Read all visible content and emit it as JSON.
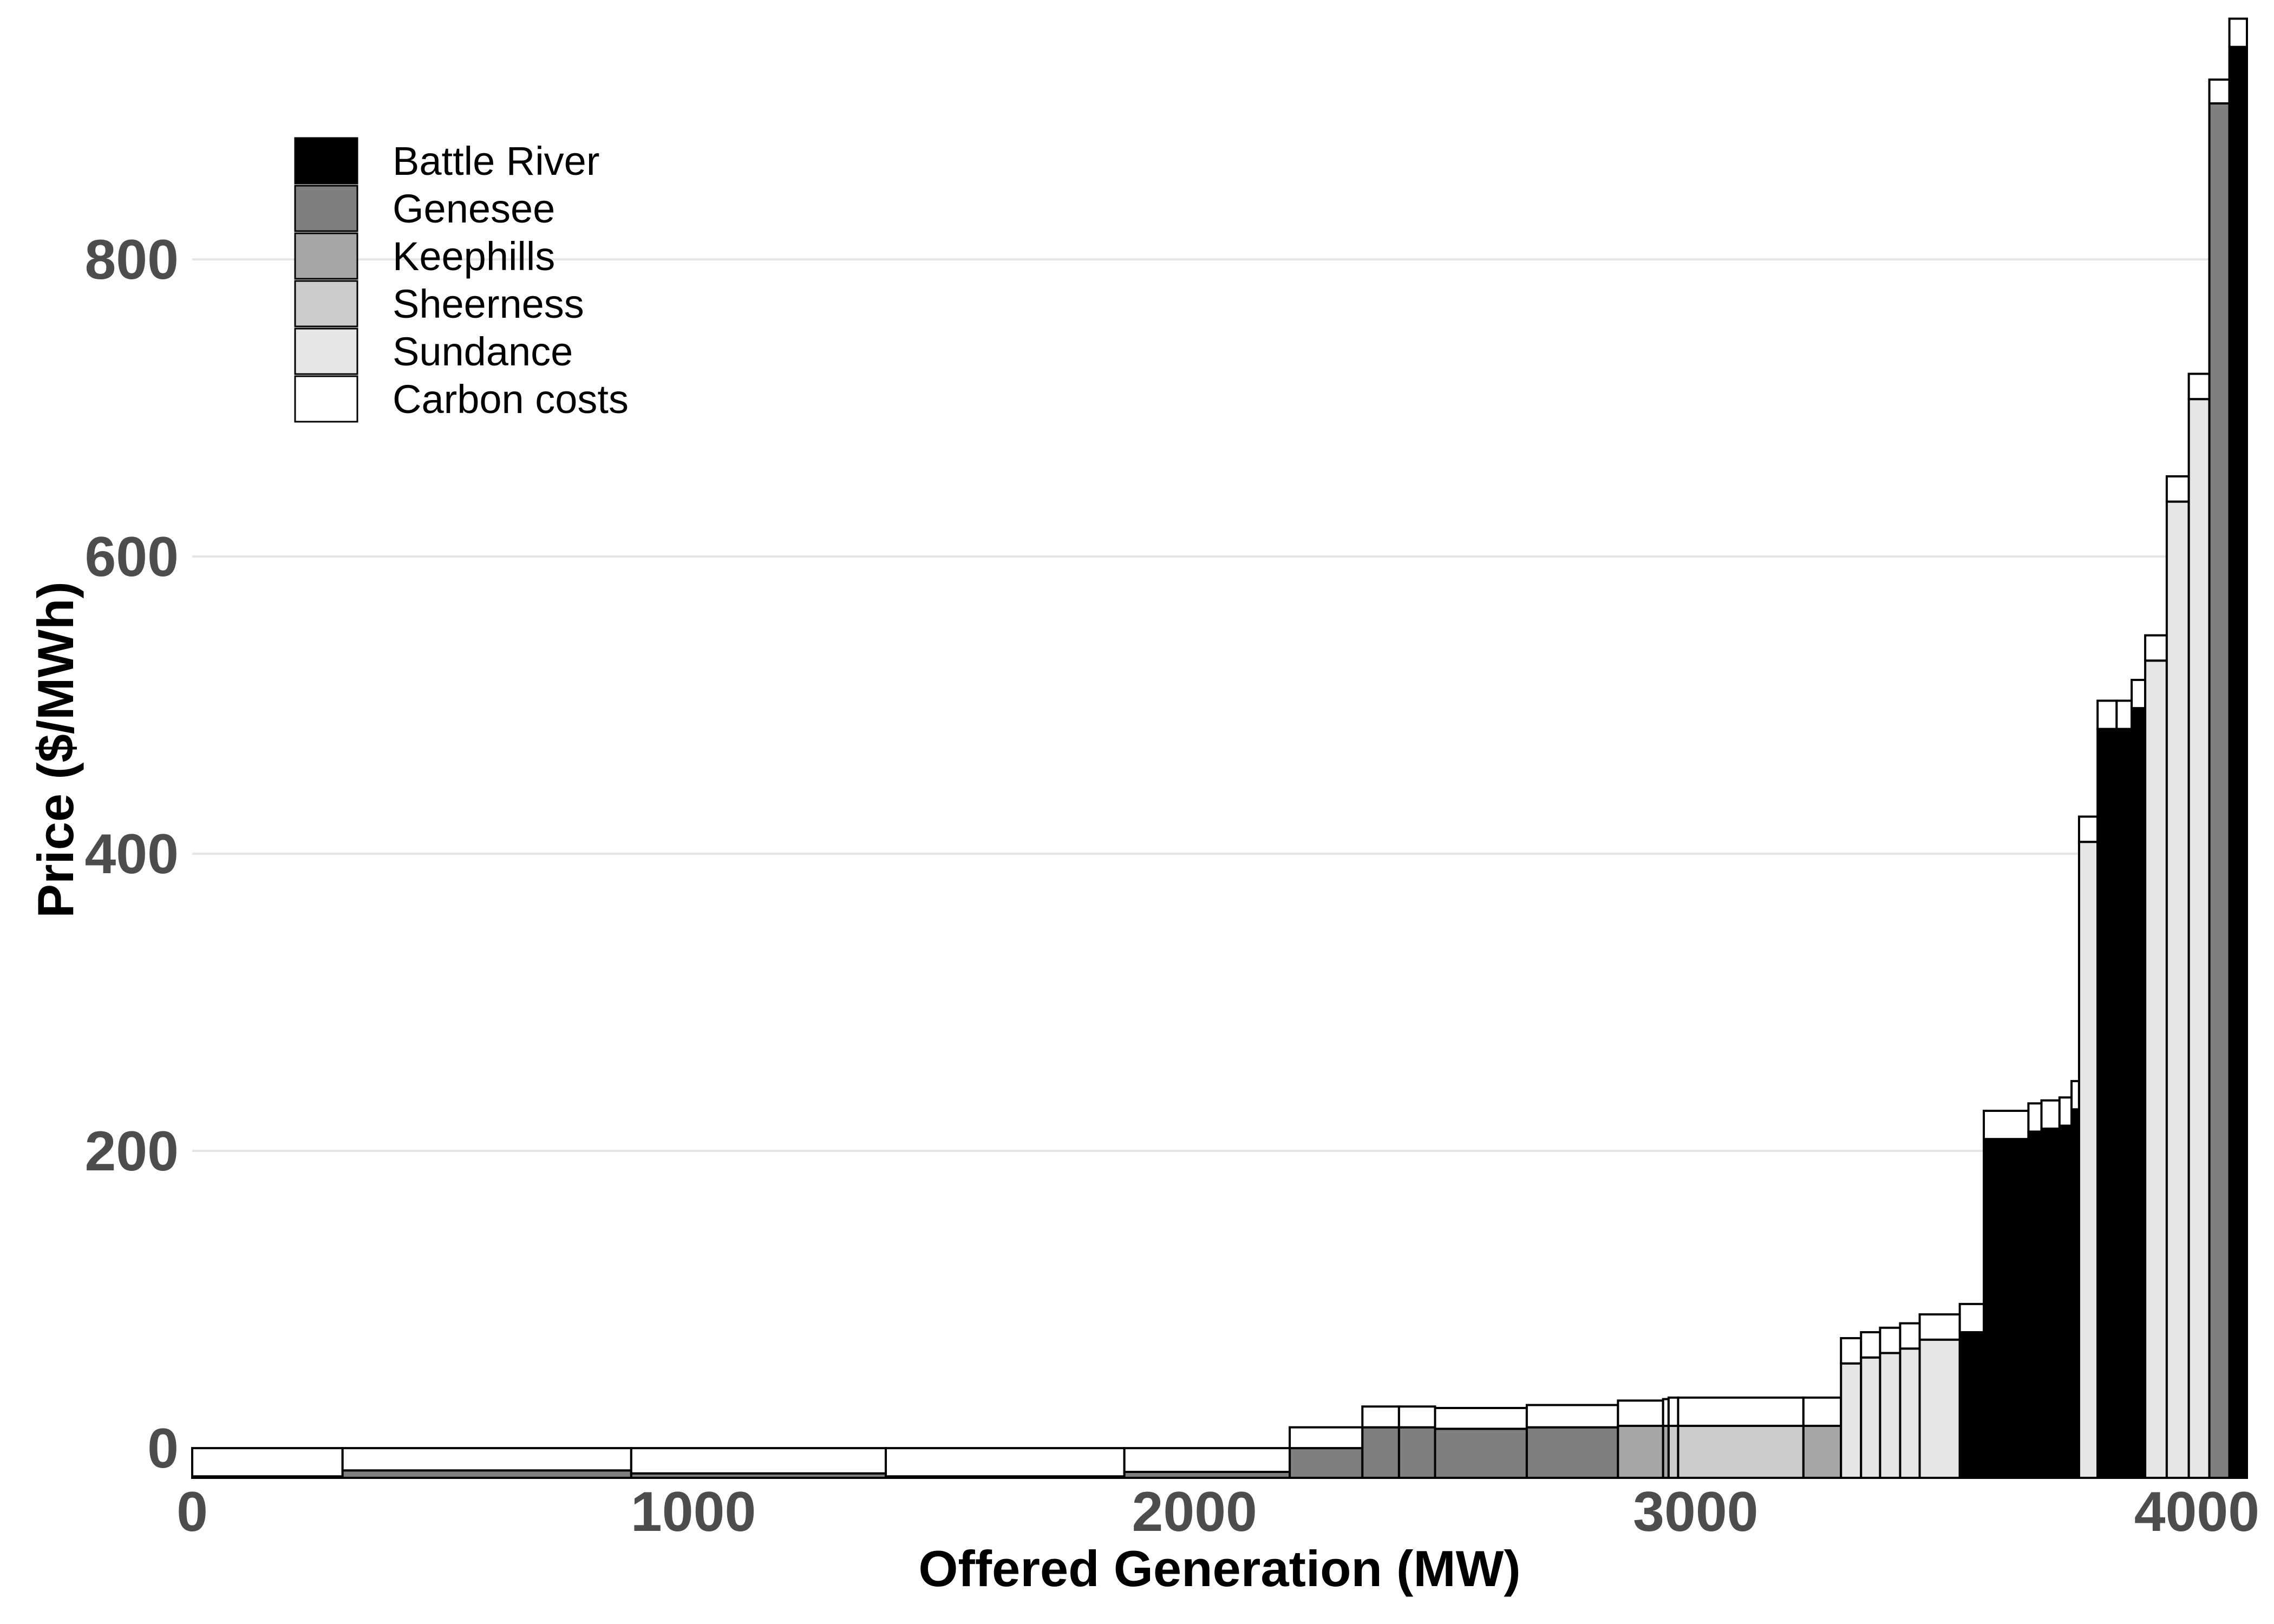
{
  "chart_data": {
    "type": "bar",
    "subtype": "supply-curve",
    "title": "",
    "xlabel": "Offered Generation (MW)",
    "ylabel": "Price ($/MWh)",
    "xlim": [
      0,
      4100
    ],
    "ylim": [
      -20,
      960
    ],
    "x_ticks": [
      0,
      1000,
      2000,
      3000,
      4000
    ],
    "y_ticks": [
      0,
      200,
      400,
      600,
      800
    ],
    "grid": "horizontal major gridlines",
    "legend_position": "top-left",
    "legend": [
      {
        "name": "Battle River",
        "color": "#000000"
      },
      {
        "name": "Genesee",
        "color": "#7f7f7f"
      },
      {
        "name": "Keephills",
        "color": "#a6a6a6"
      },
      {
        "name": "Sheerness",
        "color": "#cccccc"
      },
      {
        "name": "Sundance",
        "color": "#e6e6e6"
      },
      {
        "name": "Carbon costs",
        "color": "#ffffff"
      }
    ],
    "segments": [
      {
        "x0": 0,
        "x1": 300,
        "plant": "Sheerness",
        "price": -19,
        "carbon": 19
      },
      {
        "x0": 300,
        "x1": 876,
        "plant": "Genesee",
        "price": -15,
        "carbon": 15
      },
      {
        "x0": 876,
        "x1": 1384,
        "plant": "Genesee",
        "price": -17,
        "carbon": 17
      },
      {
        "x0": 1384,
        "x1": 1860,
        "plant": "Sheerness",
        "price": -19,
        "carbon": 19
      },
      {
        "x0": 1860,
        "x1": 2190,
        "plant": "Genesee",
        "price": -16,
        "carbon": 16
      },
      {
        "x0": 2190,
        "x1": 2335,
        "plant": "Genesee",
        "price": 0,
        "carbon": 14
      },
      {
        "x0": 2335,
        "x1": 2408,
        "plant": "Genesee",
        "price": 14,
        "carbon": 14
      },
      {
        "x0": 2408,
        "x1": 2480,
        "plant": "Genesee",
        "price": 14,
        "carbon": 14
      },
      {
        "x0": 2480,
        "x1": 2663,
        "plant": "Genesee",
        "price": 13,
        "carbon": 14
      },
      {
        "x0": 2663,
        "x1": 2845,
        "plant": "Genesee",
        "price": 14,
        "carbon": 15
      },
      {
        "x0": 2845,
        "x1": 2935,
        "plant": "Keephills",
        "price": 15,
        "carbon": 17
      },
      {
        "x0": 2935,
        "x1": 2946,
        "plant": "Keephills",
        "price": 15,
        "carbon": 18
      },
      {
        "x0": 2946,
        "x1": 2965,
        "plant": "Sheerness",
        "price": 15,
        "carbon": 19
      },
      {
        "x0": 2965,
        "x1": 3215,
        "plant": "Sheerness",
        "price": 15,
        "carbon": 19
      },
      {
        "x0": 3215,
        "x1": 3290,
        "plant": "Keephills",
        "price": 15,
        "carbon": 19
      },
      {
        "x0": 3290,
        "x1": 3330,
        "plant": "Sundance",
        "price": 57,
        "carbon": 17
      },
      {
        "x0": 3330,
        "x1": 3368,
        "plant": "Sundance",
        "price": 61,
        "carbon": 17
      },
      {
        "x0": 3368,
        "x1": 3408,
        "plant": "Sundance",
        "price": 64,
        "carbon": 17
      },
      {
        "x0": 3408,
        "x1": 3447,
        "plant": "Sundance",
        "price": 67,
        "carbon": 17
      },
      {
        "x0": 3447,
        "x1": 3527,
        "plant": "Sundance",
        "price": 73,
        "carbon": 17
      },
      {
        "x0": 3527,
        "x1": 3575,
        "plant": "Battle River",
        "price": 78,
        "carbon": 19
      },
      {
        "x0": 3575,
        "x1": 3664,
        "plant": "Battle River",
        "price": 208,
        "carbon": 19
      },
      {
        "x0": 3664,
        "x1": 3690,
        "plant": "Battle River",
        "price": 213,
        "carbon": 19
      },
      {
        "x0": 3690,
        "x1": 3726,
        "plant": "Battle River",
        "price": 215,
        "carbon": 19
      },
      {
        "x0": 3726,
        "x1": 3750,
        "plant": "Battle River",
        "price": 217,
        "carbon": 19
      },
      {
        "x0": 3750,
        "x1": 3765,
        "plant": "Battle River",
        "price": 228,
        "carbon": 19
      },
      {
        "x0": 3765,
        "x1": 3802,
        "plant": "Sundance",
        "price": 408,
        "carbon": 17
      },
      {
        "x0": 3802,
        "x1": 3840,
        "plant": "Battle River",
        "price": 484,
        "carbon": 19
      },
      {
        "x0": 3840,
        "x1": 3870,
        "plant": "Battle River",
        "price": 484,
        "carbon": 19
      },
      {
        "x0": 3870,
        "x1": 3897,
        "plant": "Battle River",
        "price": 498,
        "carbon": 19
      },
      {
        "x0": 3897,
        "x1": 3940,
        "plant": "Sundance",
        "price": 530,
        "carbon": 17
      },
      {
        "x0": 3940,
        "x1": 3984,
        "plant": "Sundance",
        "price": 637,
        "carbon": 17
      },
      {
        "x0": 3984,
        "x1": 4025,
        "plant": "Sundance",
        "price": 706,
        "carbon": 17
      },
      {
        "x0": 4025,
        "x1": 4065,
        "plant": "Genesee",
        "price": 905,
        "carbon": 16
      },
      {
        "x0": 4065,
        "x1": 4100,
        "plant": "Battle River",
        "price": 943,
        "carbon": 19
      }
    ]
  }
}
